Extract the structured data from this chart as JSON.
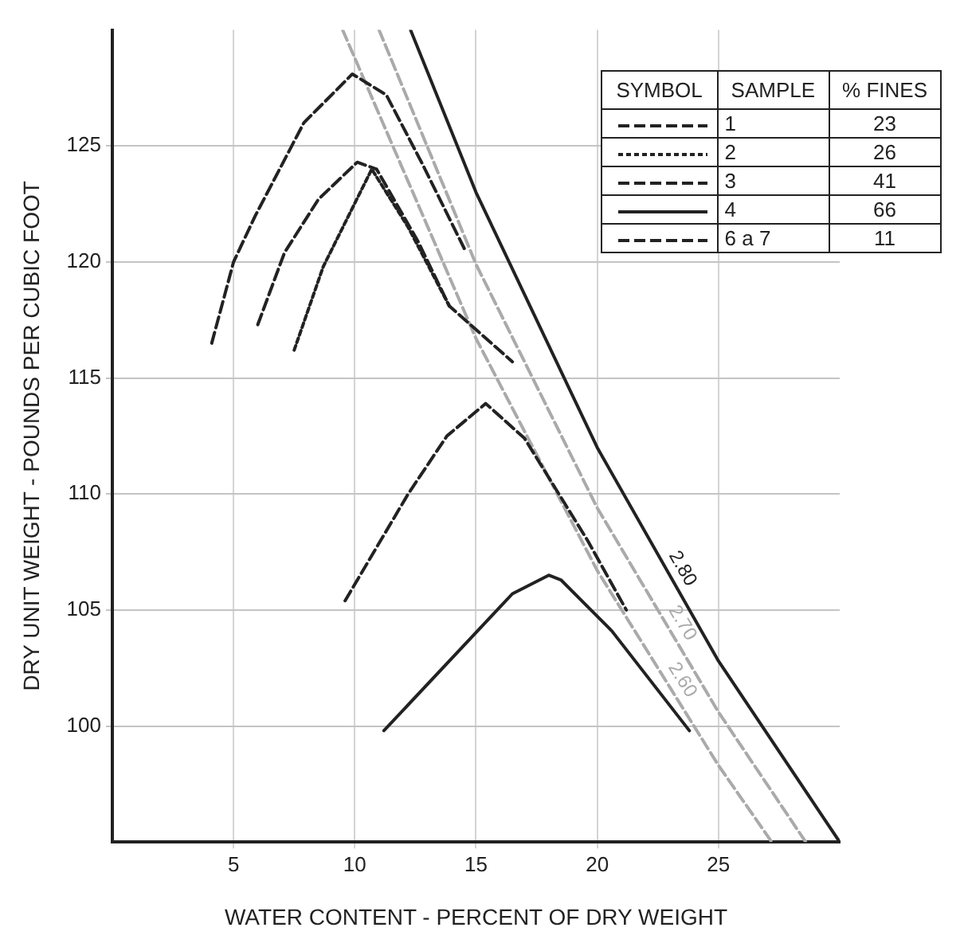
{
  "chart_data": {
    "type": "line",
    "xlabel": "WATER CONTENT - PERCENT OF DRY WEIGHT",
    "ylabel": "DRY UNIT WEIGHT - POUNDS PER CUBIC FOOT",
    "xlim": [
      0,
      30
    ],
    "xticks": [
      5,
      10,
      15,
      20,
      25
    ],
    "ylim": [
      95,
      130
    ],
    "yticks": [
      100,
      105,
      110,
      115,
      120,
      125
    ],
    "grid": true,
    "legend": "top right",
    "marker": "none",
    "annotations": [
      "SYMBOL",
      "SAMPLE",
      "% FINES",
      "23",
      "26",
      "41",
      "66",
      "11"
    ],
    "series": [
      {
        "name": "1",
        "color": "#222222",
        "line_style": "dashed",
        "x": [
          6,
          7.1,
          8.5,
          10.1,
          10.9,
          12.6,
          13.9,
          16.5
        ],
        "values": [
          117.3,
          120.4,
          122.7,
          124.3,
          124,
          120.9,
          118.1,
          115.7
        ]
      },
      {
        "name": "2",
        "color": "#222222",
        "line_style": "dotted",
        "x": [
          7.5,
          8.7,
          10.7,
          12.2,
          13.9
        ],
        "values": [
          116.2,
          119.8,
          124,
          121.5,
          118.1
        ]
      },
      {
        "name": "3",
        "color": "#222222",
        "line_style": "dashed",
        "x": [
          9.6,
          12.2,
          13.8,
          15.4,
          17,
          19.6,
          21.2
        ],
        "values": [
          105.4,
          110,
          112.5,
          113.9,
          112.4,
          108,
          105
        ]
      },
      {
        "name": "4",
        "color": "#222222",
        "line_style": "solid",
        "x": [
          11.2,
          16.5,
          18,
          18.5,
          20.6,
          23.8
        ],
        "values": [
          99.8,
          105.7,
          106.5,
          106.3,
          104.1,
          99.8
        ]
      },
      {
        "name": "6 a 7",
        "color": "#222222",
        "line_style": "dashed",
        "x": [
          4.1,
          5,
          5.9,
          7.9,
          9.9,
          11.3,
          12.8,
          14.6
        ],
        "values": [
          116.5,
          120,
          122,
          126,
          128.1,
          127.2,
          124.2,
          120.4
        ]
      },
      {
        "name": "2.80",
        "color": "#222222",
        "line_style": "solid",
        "x": [
          12.3,
          15,
          20,
          25,
          30
        ],
        "values": [
          130,
          123,
          112,
          102.8,
          95
        ]
      },
      {
        "name": "2.70",
        "color": "#aaaaaa",
        "line_style": "dashed",
        "x": [
          11,
          15,
          20,
          25,
          28.6
        ],
        "values": [
          130,
          119.9,
          109.4,
          100.6,
          95
        ]
      },
      {
        "name": "2.60",
        "color": "#aaaaaa",
        "line_style": "dashed",
        "x": [
          9.5,
          15,
          20,
          25,
          27.2
        ],
        "values": [
          130,
          116.7,
          106.7,
          98.3,
          95
        ]
      }
    ]
  }
}
